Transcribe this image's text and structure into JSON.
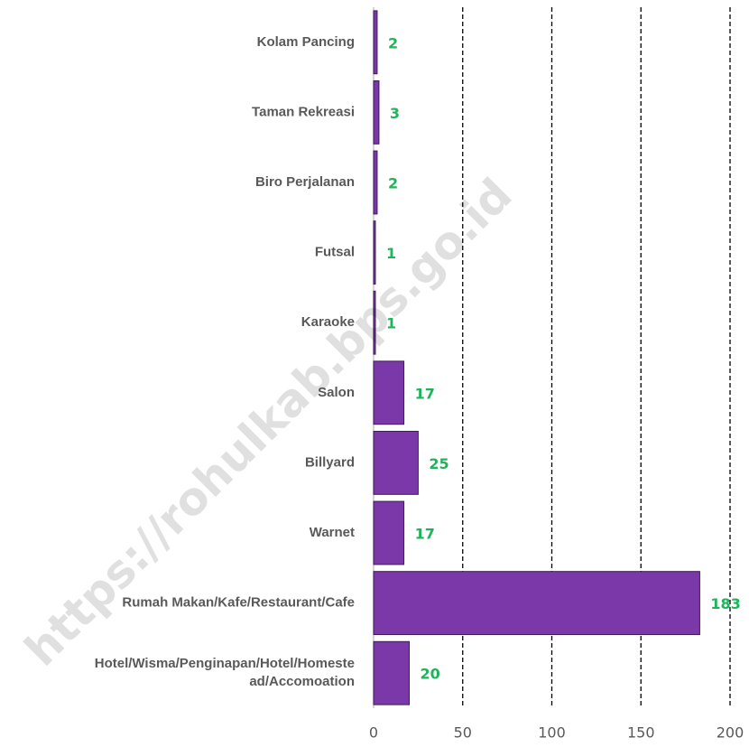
{
  "chart_data": {
    "type": "barh",
    "categories": [
      "Kolam Pancing",
      "Taman Rekreasi",
      "Biro Perjalanan",
      "Futsal",
      "Karaoke",
      "Salon",
      "Billyard",
      "Warnet",
      "Rumah Makan/Kafe/Restaurant/Cafe",
      "Hotel/Wisma/Penginapan/Hotel/Homeste\nad/Accomoation"
    ],
    "values": [
      2,
      3,
      2,
      1,
      1,
      17,
      25,
      17,
      183,
      20
    ],
    "color": "#7a38a8",
    "label_color": "#1fb35a",
    "xlim": [
      0,
      200
    ],
    "xticks": [
      0,
      50,
      100,
      150,
      200
    ],
    "grid": true,
    "watermark": "https://rohulkab.bps.go.id"
  }
}
